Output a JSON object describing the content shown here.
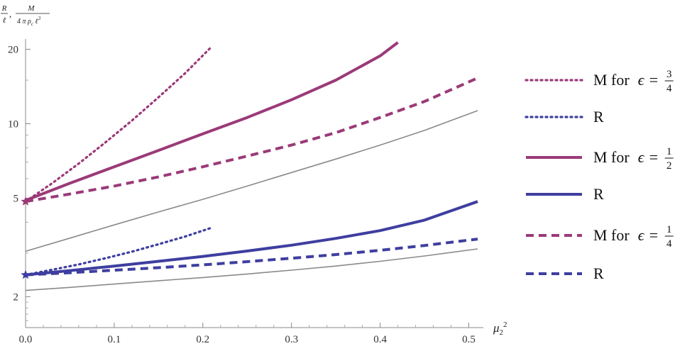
{
  "chart_data": {
    "type": "line",
    "y_scale": "log",
    "xlim": [
      0,
      0.51
    ],
    "ylim": [
      1.5,
      22
    ],
    "x_ticks": [
      0.0,
      0.1,
      0.2,
      0.3,
      0.4,
      0.5
    ],
    "x_tick_labels": [
      "0.0",
      "0.1",
      "0.2",
      "0.3",
      "0.4",
      "0.5"
    ],
    "y_ticks": [
      2,
      5,
      10,
      20
    ],
    "y_tick_labels": [
      "2",
      "5",
      "10",
      "20"
    ],
    "xlabel": {
      "base": "μ",
      "sub": "2",
      "sup": "2"
    },
    "ylabel": {
      "frac1": {
        "num": "R",
        "den": "ℓ"
      },
      "separator": ",",
      "frac2": {
        "num": "M",
        "den_parts": [
          "4 π ρ",
          "c",
          " ℓ",
          "3"
        ]
      }
    },
    "grid": false,
    "legend_position": "right",
    "colors": {
      "magenta": "#9b3a78",
      "blue": "#3e3ea0",
      "gray": "#8a8a8a"
    },
    "series": [
      {
        "name": "M",
        "epsilon_num": "3",
        "epsilon_den": "4",
        "color": "#9b3a78",
        "style": "dotted",
        "legend_index": 0,
        "x": [
          0,
          0.03,
          0.06,
          0.09,
          0.12,
          0.15,
          0.18,
          0.21
        ],
        "y": [
          4.85,
          5.75,
          6.9,
          8.4,
          10.3,
          12.8,
          16.0,
          20.5
        ]
      },
      {
        "name": "R",
        "color": "#3e3ea0",
        "style": "dotted",
        "legend_index": 1,
        "x": [
          0,
          0.03,
          0.06,
          0.09,
          0.12,
          0.15,
          0.18,
          0.21
        ],
        "y": [
          2.45,
          2.57,
          2.7,
          2.86,
          3.04,
          3.26,
          3.5,
          3.8
        ]
      },
      {
        "name": "M",
        "epsilon_num": "1",
        "epsilon_den": "2",
        "color": "#9b3a78",
        "style": "solid",
        "legend_index": 2,
        "x": [
          0,
          0.05,
          0.1,
          0.15,
          0.2,
          0.25,
          0.3,
          0.35,
          0.4,
          0.42
        ],
        "y": [
          4.9,
          5.75,
          6.7,
          7.8,
          9.1,
          10.6,
          12.5,
          15.0,
          18.8,
          21.3
        ]
      },
      {
        "name": "R",
        "color": "#3e3ea0",
        "style": "solid",
        "legend_index": 3,
        "x": [
          0,
          0.05,
          0.1,
          0.15,
          0.2,
          0.25,
          0.3,
          0.35,
          0.4,
          0.45,
          0.51
        ],
        "y": [
          2.45,
          2.55,
          2.66,
          2.78,
          2.91,
          3.06,
          3.23,
          3.44,
          3.7,
          4.08,
          4.85
        ]
      },
      {
        "name": "M",
        "epsilon_num": "1",
        "epsilon_den": "4",
        "color": "#9b3a78",
        "style": "dashed",
        "legend_index": 4,
        "x": [
          0,
          0.05,
          0.1,
          0.15,
          0.2,
          0.25,
          0.3,
          0.35,
          0.4,
          0.45,
          0.51
        ],
        "y": [
          4.85,
          5.2,
          5.6,
          6.1,
          6.7,
          7.4,
          8.2,
          9.2,
          10.6,
          12.3,
          15.3
        ]
      },
      {
        "name": "R",
        "color": "#3e3ea0",
        "style": "dashed",
        "legend_index": 5,
        "x": [
          0,
          0.05,
          0.1,
          0.15,
          0.2,
          0.25,
          0.3,
          0.35,
          0.4,
          0.45,
          0.51
        ],
        "y": [
          2.45,
          2.5,
          2.56,
          2.62,
          2.69,
          2.77,
          2.86,
          2.96,
          3.08,
          3.22,
          3.42
        ]
      },
      {
        "color": "#8a8a8a",
        "style": "thin",
        "legend_index": null,
        "x": [
          0,
          0.05,
          0.1,
          0.15,
          0.2,
          0.25,
          0.3,
          0.35,
          0.4,
          0.45,
          0.51
        ],
        "y": [
          3.05,
          3.45,
          3.9,
          4.4,
          4.95,
          5.6,
          6.35,
          7.2,
          8.2,
          9.4,
          11.3
        ]
      },
      {
        "color": "#8a8a8a",
        "style": "thin",
        "legend_index": null,
        "x": [
          0,
          0.05,
          0.1,
          0.15,
          0.2,
          0.25,
          0.3,
          0.35,
          0.4,
          0.45,
          0.51
        ],
        "y": [
          2.12,
          2.18,
          2.25,
          2.32,
          2.39,
          2.47,
          2.56,
          2.66,
          2.78,
          2.92,
          3.12
        ]
      }
    ],
    "markers": [
      {
        "x": 0,
        "y": 4.85,
        "color": "#9b3a78",
        "shape": "star"
      },
      {
        "x": 0,
        "y": 2.45,
        "color": "#3e3ea0",
        "shape": "star"
      }
    ]
  }
}
